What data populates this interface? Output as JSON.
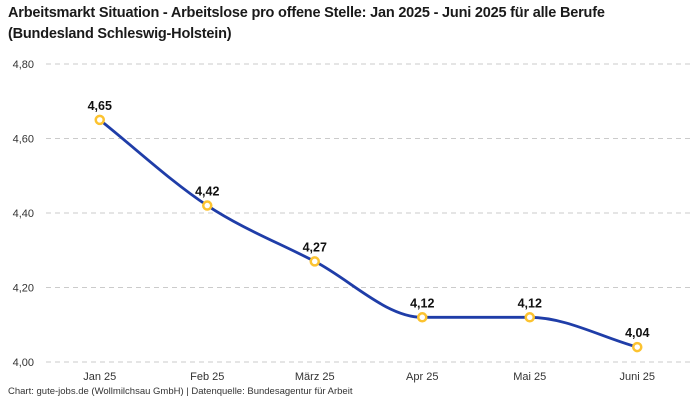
{
  "title": "Arbeitsmarkt Situation - Arbeitslose pro offene Stelle: Jan 2025 - Juni 2025 für alle Berufe (Bundesland Schleswig-Holstein)",
  "footer": "Chart: gute-jobs.de (Wollmilchsau GmbH) | Datenquelle: Bundesagentur für Arbeit",
  "chart_data": {
    "type": "line",
    "title": "Arbeitsmarkt Situation - Arbeitslose pro offene Stelle: Jan 2025 - Juni 2025 für alle Berufe (Bundesland Schleswig-Holstein)",
    "categories": [
      "Jan 25",
      "Feb 25",
      "März 25",
      "Apr 25",
      "Mai 25",
      "Juni 25"
    ],
    "values": [
      4.65,
      4.42,
      4.27,
      4.12,
      4.12,
      4.04
    ],
    "value_labels": [
      "4,65",
      "4,42",
      "4,27",
      "4,12",
      "4,12",
      "4,04"
    ],
    "xlabel": "",
    "ylabel": "",
    "ylim": [
      4.0,
      4.8
    ],
    "y_ticks": [
      {
        "value": 4.0,
        "label": "4,00"
      },
      {
        "value": 4.2,
        "label": "4,20"
      },
      {
        "value": 4.4,
        "label": "4,40"
      },
      {
        "value": 4.6,
        "label": "4,60"
      },
      {
        "value": 4.8,
        "label": "4,80"
      }
    ],
    "grid": "horizontal-dashed",
    "legend": "none",
    "curve": "monotone-smooth",
    "colors": {
      "line": "#1f3da8",
      "marker_ring": "#fcc330",
      "marker_fill": "#ffffff",
      "grid": "#cbcbcb",
      "title_text": "#1a1a1a",
      "tick_text": "#333333",
      "data_label_text": "#111111",
      "background": "#ffffff"
    }
  }
}
